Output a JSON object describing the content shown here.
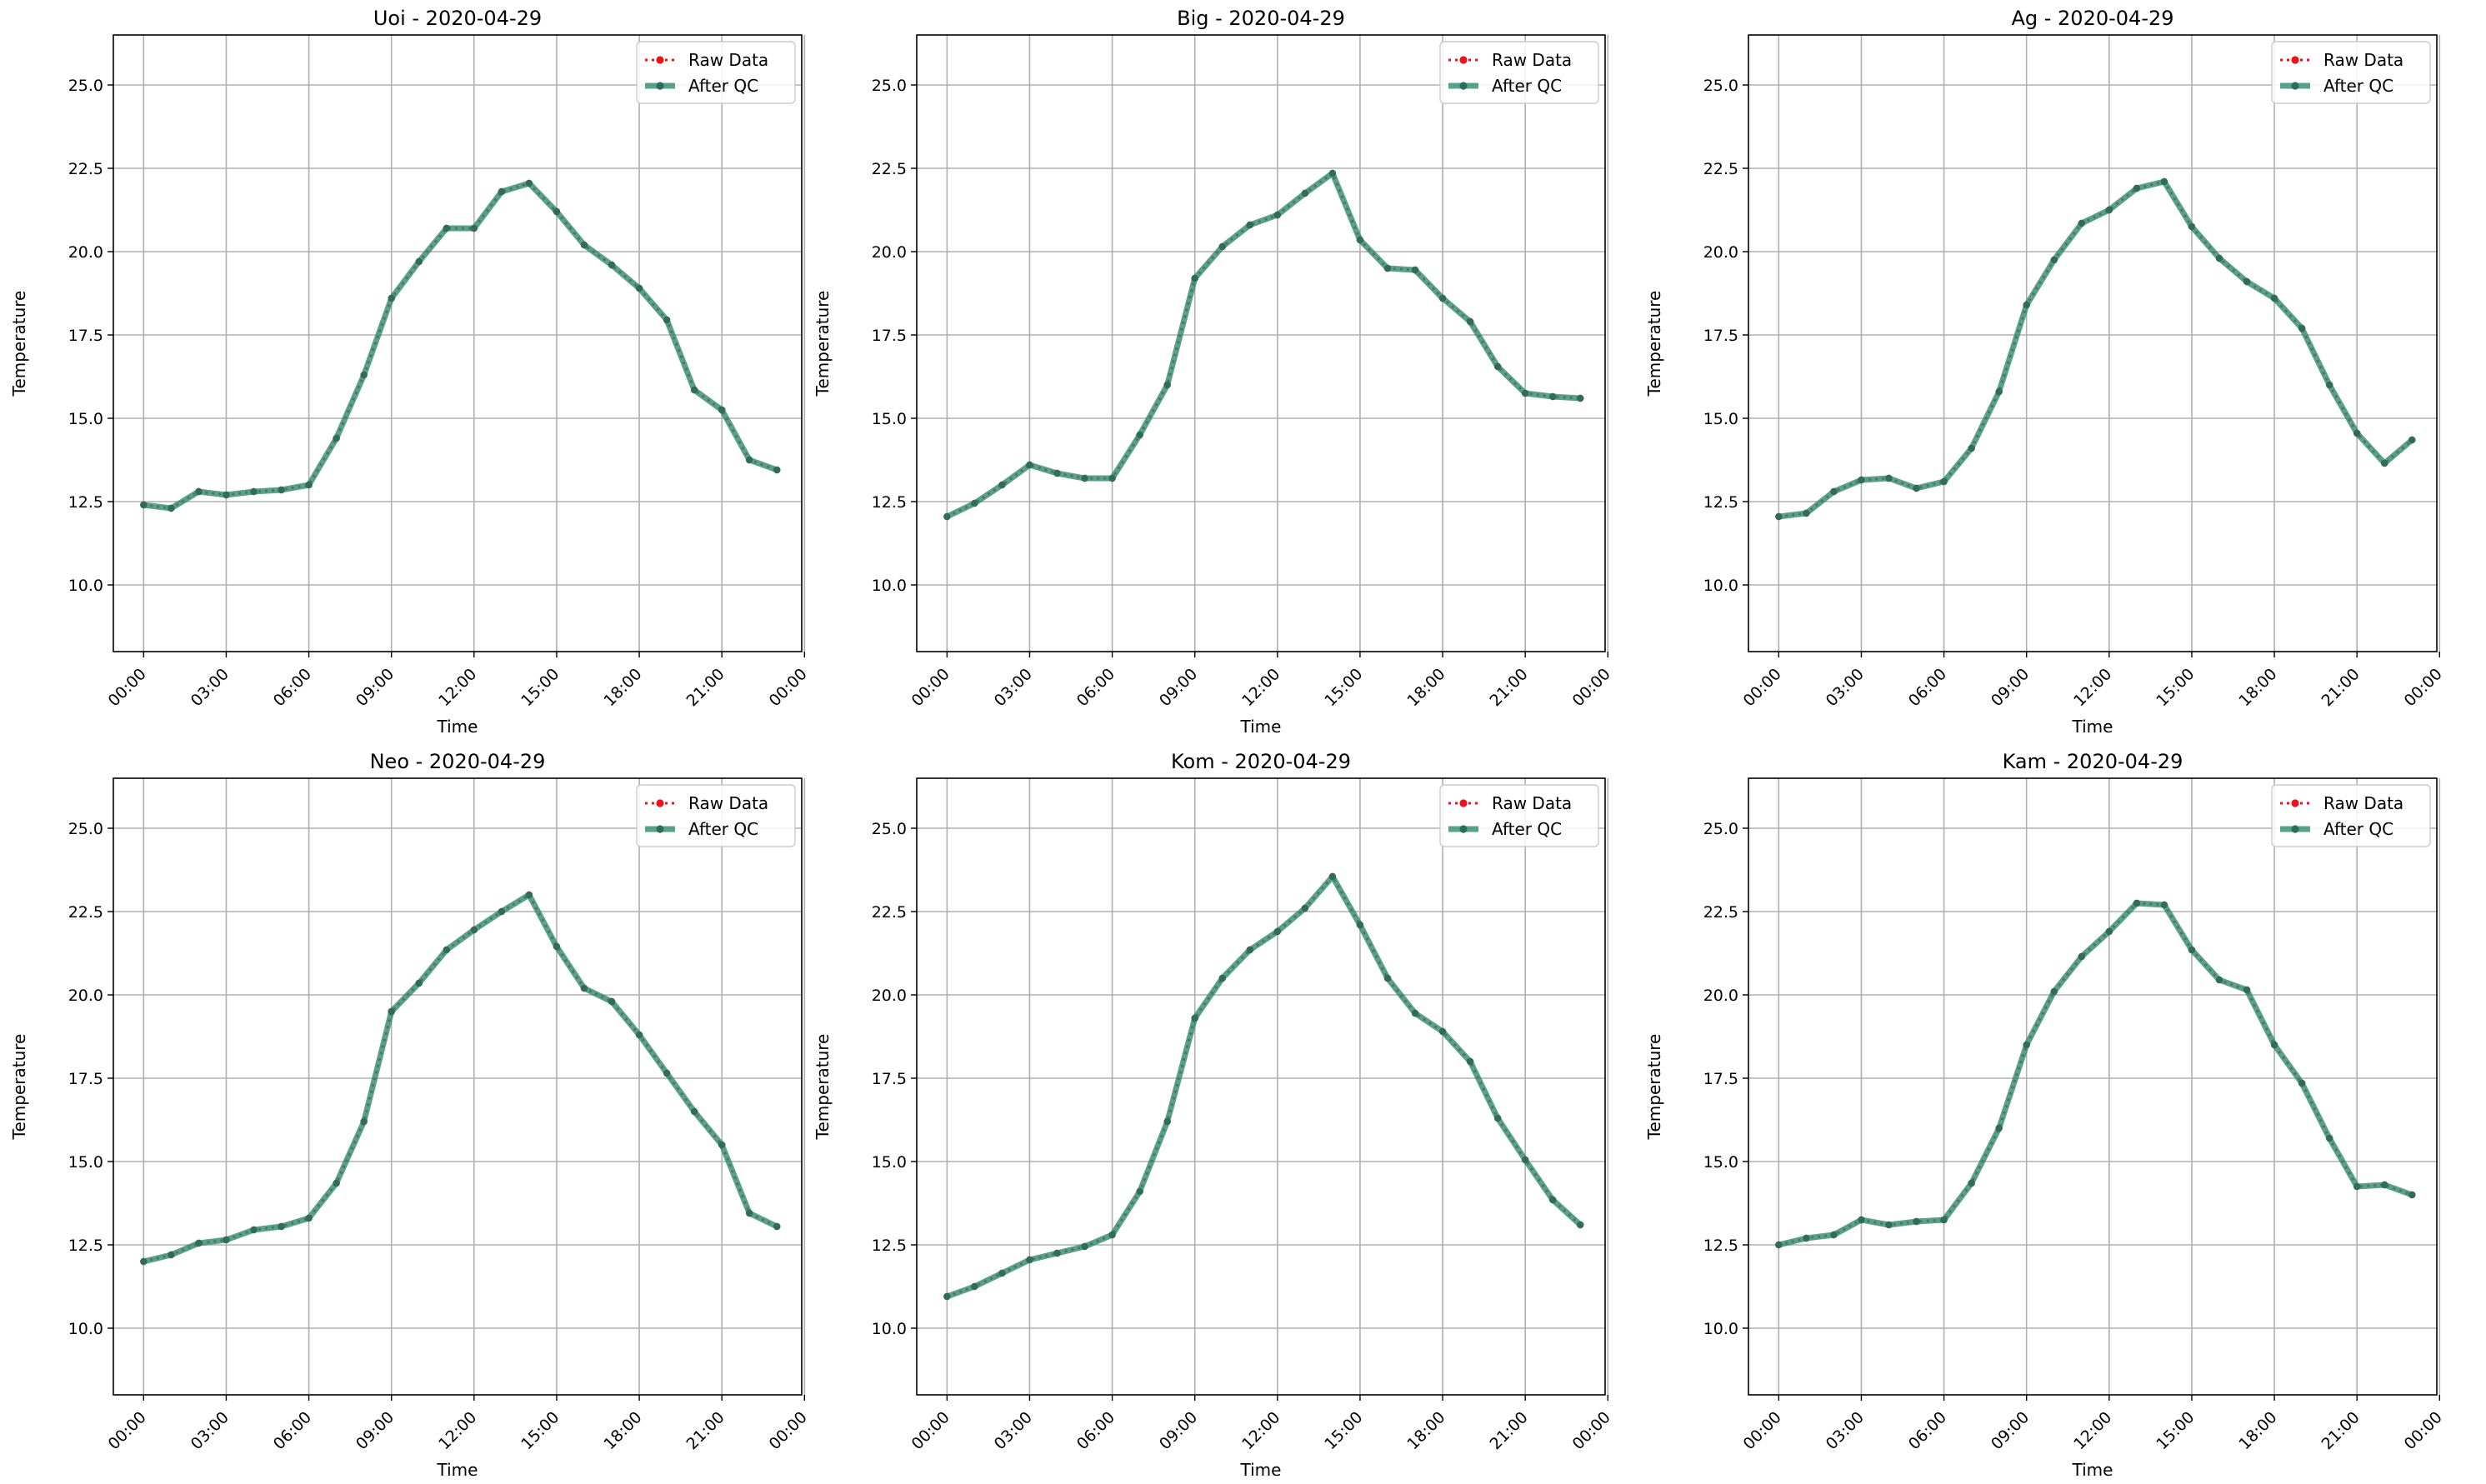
{
  "colors": {
    "raw": "#e8141b",
    "qc": "#2e8b6e",
    "qc_marker": "#2a6e59",
    "grid": "#b0b0b0",
    "axis": "#000000"
  },
  "chart_data": [
    {
      "type": "line",
      "title": "Uoi - 2020-04-29",
      "xlabel": "Time",
      "ylabel": "Temperature",
      "ylim": [
        8.0,
        26.5
      ],
      "xlim": [
        -1.1,
        23.9
      ],
      "x_ticks": [
        "00:00",
        "03:00",
        "06:00",
        "09:00",
        "12:00",
        "15:00",
        "18:00",
        "21:00",
        "00:00"
      ],
      "y_ticks": [
        "10.0",
        "12.5",
        "15.0",
        "17.5",
        "20.0",
        "22.5",
        "25.0"
      ],
      "grid": true,
      "legend_position": "upper right",
      "legend": [
        "Raw Data",
        "After QC"
      ],
      "x": [
        "00:00",
        "01:00",
        "02:00",
        "03:00",
        "04:00",
        "05:00",
        "06:00",
        "07:00",
        "08:00",
        "09:00",
        "10:00",
        "11:00",
        "12:00",
        "13:00",
        "14:00",
        "15:00",
        "16:00",
        "17:00",
        "18:00",
        "19:00",
        "20:00",
        "21:00",
        "22:00",
        "23:00"
      ],
      "series": [
        {
          "name": "Raw Data",
          "values": [
            12.4,
            12.3,
            12.8,
            12.7,
            12.8,
            12.85,
            13.0,
            14.4,
            16.3,
            18.6,
            19.7,
            20.7,
            20.7,
            21.8,
            22.05,
            21.2,
            20.2,
            19.6,
            18.9,
            17.95,
            15.85,
            15.25,
            13.75,
            13.45
          ]
        },
        {
          "name": "After QC",
          "values": [
            12.4,
            12.3,
            12.8,
            12.7,
            12.8,
            12.85,
            13.0,
            14.4,
            16.3,
            18.6,
            19.7,
            20.7,
            20.7,
            21.8,
            22.05,
            21.2,
            20.2,
            19.6,
            18.9,
            17.95,
            15.85,
            15.25,
            13.75,
            13.45
          ]
        }
      ]
    },
    {
      "type": "line",
      "title": "Big - 2020-04-29",
      "xlabel": "Time",
      "ylabel": "Temperature",
      "ylim": [
        8.0,
        26.5
      ],
      "xlim": [
        -1.1,
        23.9
      ],
      "x_ticks": [
        "00:00",
        "03:00",
        "06:00",
        "09:00",
        "12:00",
        "15:00",
        "18:00",
        "21:00",
        "00:00"
      ],
      "y_ticks": [
        "10.0",
        "12.5",
        "15.0",
        "17.5",
        "20.0",
        "22.5",
        "25.0"
      ],
      "grid": true,
      "legend_position": "upper right",
      "legend": [
        "Raw Data",
        "After QC"
      ],
      "x": [
        "00:00",
        "01:00",
        "02:00",
        "03:00",
        "04:00",
        "05:00",
        "06:00",
        "07:00",
        "08:00",
        "09:00",
        "10:00",
        "11:00",
        "12:00",
        "13:00",
        "14:00",
        "15:00",
        "16:00",
        "17:00",
        "18:00",
        "19:00",
        "20:00",
        "21:00",
        "22:00",
        "23:00"
      ],
      "series": [
        {
          "name": "Raw Data",
          "values": [
            12.05,
            12.45,
            13.0,
            13.6,
            13.35,
            13.2,
            13.2,
            14.5,
            16.0,
            19.2,
            20.15,
            20.8,
            21.1,
            21.75,
            22.35,
            20.35,
            19.5,
            19.45,
            18.6,
            17.9,
            16.55,
            15.75,
            15.65,
            15.6
          ]
        },
        {
          "name": "After QC",
          "values": [
            12.05,
            12.45,
            13.0,
            13.6,
            13.35,
            13.2,
            13.2,
            14.5,
            16.0,
            19.2,
            20.15,
            20.8,
            21.1,
            21.75,
            22.35,
            20.35,
            19.5,
            19.45,
            18.6,
            17.9,
            16.55,
            15.75,
            15.65,
            15.6
          ]
        }
      ]
    },
    {
      "type": "line",
      "title": "Ag - 2020-04-29",
      "xlabel": "Time",
      "ylabel": "Temperature",
      "ylim": [
        8.0,
        26.5
      ],
      "xlim": [
        -1.1,
        23.9
      ],
      "x_ticks": [
        "00:00",
        "03:00",
        "06:00",
        "09:00",
        "12:00",
        "15:00",
        "18:00",
        "21:00",
        "00:00"
      ],
      "y_ticks": [
        "10.0",
        "12.5",
        "15.0",
        "17.5",
        "20.0",
        "22.5",
        "25.0"
      ],
      "grid": true,
      "legend_position": "upper right",
      "legend": [
        "Raw Data",
        "After QC"
      ],
      "x": [
        "00:00",
        "01:00",
        "02:00",
        "03:00",
        "04:00",
        "05:00",
        "06:00",
        "07:00",
        "08:00",
        "09:00",
        "10:00",
        "11:00",
        "12:00",
        "13:00",
        "14:00",
        "15:00",
        "16:00",
        "17:00",
        "18:00",
        "19:00",
        "20:00",
        "21:00",
        "22:00",
        "23:00"
      ],
      "series": [
        {
          "name": "Raw Data",
          "values": [
            12.05,
            12.15,
            12.8,
            13.15,
            13.2,
            12.9,
            13.1,
            14.1,
            15.8,
            18.4,
            19.75,
            20.85,
            21.25,
            21.9,
            22.1,
            20.75,
            19.8,
            19.1,
            18.6,
            17.7,
            16.0,
            14.55,
            13.65,
            14.35
          ]
        },
        {
          "name": "After QC",
          "values": [
            12.05,
            12.15,
            12.8,
            13.15,
            13.2,
            12.9,
            13.1,
            14.1,
            15.8,
            18.4,
            19.75,
            20.85,
            21.25,
            21.9,
            22.1,
            20.75,
            19.8,
            19.1,
            18.6,
            17.7,
            16.0,
            14.55,
            13.65,
            14.35
          ]
        }
      ]
    },
    {
      "type": "line",
      "title": "Neo - 2020-04-29",
      "xlabel": "Time",
      "ylabel": "Temperature",
      "ylim": [
        8.0,
        26.5
      ],
      "xlim": [
        -1.1,
        23.9
      ],
      "x_ticks": [
        "00:00",
        "03:00",
        "06:00",
        "09:00",
        "12:00",
        "15:00",
        "18:00",
        "21:00",
        "00:00"
      ],
      "y_ticks": [
        "10.0",
        "12.5",
        "15.0",
        "17.5",
        "20.0",
        "22.5",
        "25.0"
      ],
      "grid": true,
      "legend_position": "upper right",
      "legend": [
        "Raw Data",
        "After QC"
      ],
      "x": [
        "00:00",
        "01:00",
        "02:00",
        "03:00",
        "04:00",
        "05:00",
        "06:00",
        "07:00",
        "08:00",
        "09:00",
        "10:00",
        "11:00",
        "12:00",
        "13:00",
        "14:00",
        "15:00",
        "16:00",
        "17:00",
        "18:00",
        "19:00",
        "20:00",
        "21:00",
        "22:00",
        "23:00"
      ],
      "series": [
        {
          "name": "Raw Data",
          "values": [
            12.0,
            12.2,
            12.55,
            12.65,
            12.95,
            13.05,
            13.3,
            14.35,
            16.2,
            19.5,
            20.35,
            21.35,
            21.95,
            22.5,
            23.0,
            21.45,
            20.2,
            19.8,
            18.8,
            17.65,
            16.5,
            15.5,
            13.45,
            13.05
          ]
        },
        {
          "name": "After QC",
          "values": [
            12.0,
            12.2,
            12.55,
            12.65,
            12.95,
            13.05,
            13.3,
            14.35,
            16.2,
            19.5,
            20.35,
            21.35,
            21.95,
            22.5,
            23.0,
            21.45,
            20.2,
            19.8,
            18.8,
            17.65,
            16.5,
            15.5,
            13.45,
            13.05
          ]
        }
      ]
    },
    {
      "type": "line",
      "title": "Kom - 2020-04-29",
      "xlabel": "Time",
      "ylabel": "Temperature",
      "ylim": [
        8.0,
        26.5
      ],
      "xlim": [
        -1.1,
        23.9
      ],
      "x_ticks": [
        "00:00",
        "03:00",
        "06:00",
        "09:00",
        "12:00",
        "15:00",
        "18:00",
        "21:00",
        "00:00"
      ],
      "y_ticks": [
        "10.0",
        "12.5",
        "15.0",
        "17.5",
        "20.0",
        "22.5",
        "25.0"
      ],
      "grid": true,
      "legend_position": "upper right",
      "legend": [
        "Raw Data",
        "After QC"
      ],
      "x": [
        "00:00",
        "01:00",
        "02:00",
        "03:00",
        "04:00",
        "05:00",
        "06:00",
        "07:00",
        "08:00",
        "09:00",
        "10:00",
        "11:00",
        "12:00",
        "13:00",
        "14:00",
        "15:00",
        "16:00",
        "17:00",
        "18:00",
        "19:00",
        "20:00",
        "21:00",
        "22:00",
        "23:00"
      ],
      "series": [
        {
          "name": "Raw Data",
          "values": [
            10.95,
            11.25,
            11.65,
            12.05,
            12.25,
            12.45,
            12.8,
            14.1,
            16.2,
            19.3,
            20.5,
            21.35,
            21.9,
            22.6,
            23.55,
            22.1,
            20.5,
            19.45,
            18.9,
            18.0,
            16.3,
            15.05,
            13.85,
            13.1
          ]
        },
        {
          "name": "After QC",
          "values": [
            10.95,
            11.25,
            11.65,
            12.05,
            12.25,
            12.45,
            12.8,
            14.1,
            16.2,
            19.3,
            20.5,
            21.35,
            21.9,
            22.6,
            23.55,
            22.1,
            20.5,
            19.45,
            18.9,
            18.0,
            16.3,
            15.05,
            13.85,
            13.1
          ]
        }
      ]
    },
    {
      "type": "line",
      "title": "Kam - 2020-04-29",
      "xlabel": "Time",
      "ylabel": "Temperature",
      "ylim": [
        8.0,
        26.5
      ],
      "xlim": [
        -1.1,
        23.9
      ],
      "x_ticks": [
        "00:00",
        "03:00",
        "06:00",
        "09:00",
        "12:00",
        "15:00",
        "18:00",
        "21:00",
        "00:00"
      ],
      "y_ticks": [
        "10.0",
        "12.5",
        "15.0",
        "17.5",
        "20.0",
        "22.5",
        "25.0"
      ],
      "grid": true,
      "legend_position": "upper right",
      "legend": [
        "Raw Data",
        "After QC"
      ],
      "x": [
        "00:00",
        "01:00",
        "02:00",
        "03:00",
        "04:00",
        "05:00",
        "06:00",
        "07:00",
        "08:00",
        "09:00",
        "10:00",
        "11:00",
        "12:00",
        "13:00",
        "14:00",
        "15:00",
        "16:00",
        "17:00",
        "18:00",
        "19:00",
        "20:00",
        "21:00",
        "22:00",
        "23:00"
      ],
      "series": [
        {
          "name": "Raw Data",
          "values": [
            12.5,
            12.7,
            12.8,
            13.25,
            13.1,
            13.2,
            13.25,
            14.35,
            16.0,
            18.5,
            20.1,
            21.15,
            21.9,
            22.75,
            22.7,
            21.35,
            20.45,
            20.15,
            18.5,
            17.35,
            15.7,
            14.25,
            14.3,
            14.0
          ]
        },
        {
          "name": "After QC",
          "values": [
            12.5,
            12.7,
            12.8,
            13.25,
            13.1,
            13.2,
            13.25,
            14.35,
            16.0,
            18.5,
            20.1,
            21.15,
            21.9,
            22.75,
            22.7,
            21.35,
            20.45,
            20.15,
            18.5,
            17.35,
            15.7,
            14.25,
            14.3,
            14.0
          ]
        }
      ]
    }
  ]
}
